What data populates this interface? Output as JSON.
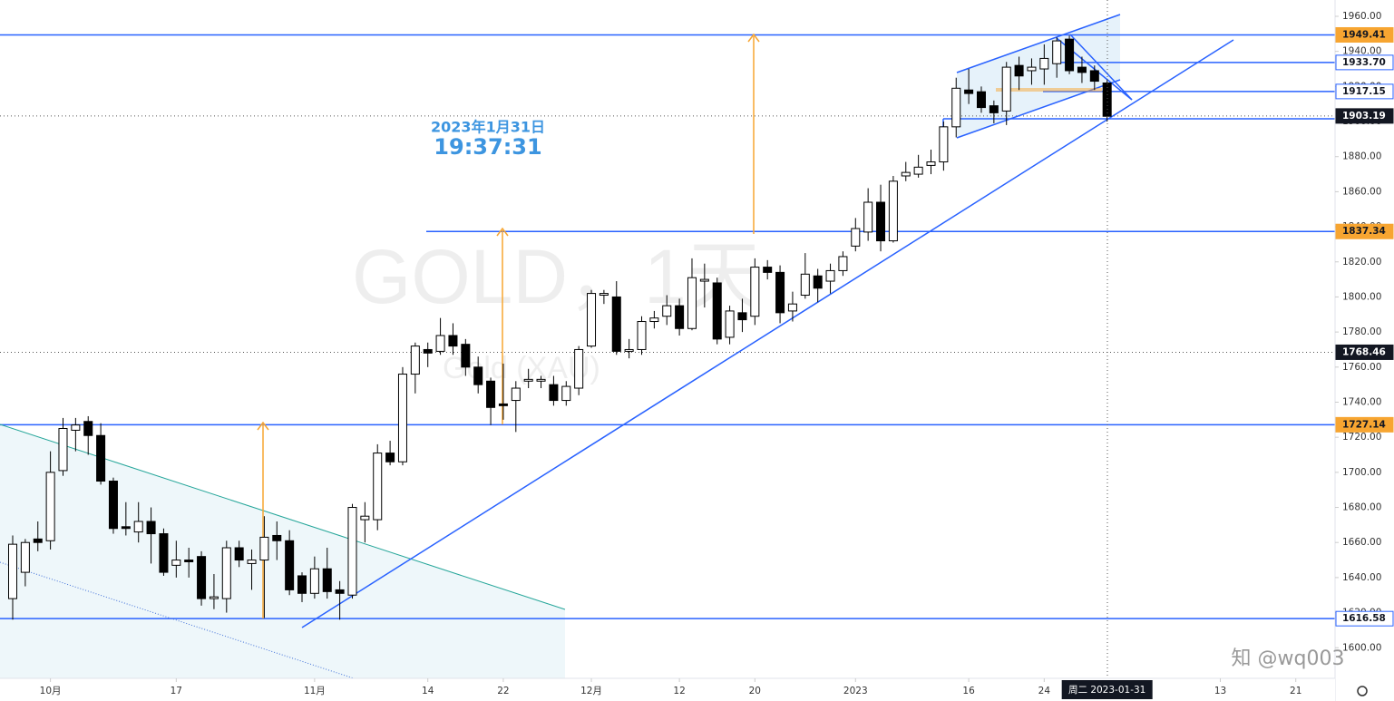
{
  "watermark": {
    "symbol": "GOLD，1天",
    "description": "Gold (XAU)",
    "user": "知 @wq003"
  },
  "timestamp": {
    "date": "2023年1月31日",
    "time": "19:37:31"
  },
  "chart_data": {
    "type": "candlestick",
    "ylim": [
      1582.55,
      1969.31
    ],
    "xlim": [
      -1.01,
      105.12
    ],
    "yticks": [
      {
        "value": 1600,
        "label": "1600.00"
      },
      {
        "value": 1620,
        "label": "1620.00"
      },
      {
        "value": 1640,
        "label": "1640.00"
      },
      {
        "value": 1660,
        "label": "1660.00"
      },
      {
        "value": 1680,
        "label": "1680.00"
      },
      {
        "value": 1700,
        "label": "1700.00"
      },
      {
        "value": 1720,
        "label": "1720.00"
      },
      {
        "value": 1740,
        "label": "1740.00"
      },
      {
        "value": 1760,
        "label": "1760.00"
      },
      {
        "value": 1780,
        "label": "1780.00"
      },
      {
        "value": 1800,
        "label": "1800.00"
      },
      {
        "value": 1820,
        "label": "1820.00"
      },
      {
        "value": 1840,
        "label": "1840.00"
      },
      {
        "value": 1860,
        "label": "1860.00"
      },
      {
        "value": 1880,
        "label": "1880.00"
      },
      {
        "value": 1900,
        "label": "1900.00"
      },
      {
        "value": 1920,
        "label": "1920.00"
      },
      {
        "value": 1940,
        "label": "1940.00"
      },
      {
        "value": 1960,
        "label": "1960.00"
      }
    ],
    "xticks": [
      {
        "value": 3,
        "label": "10月"
      },
      {
        "value": 13,
        "label": "17"
      },
      {
        "value": 24,
        "label": "11月"
      },
      {
        "value": 33,
        "label": "14"
      },
      {
        "value": 39,
        "label": "22"
      },
      {
        "value": 46,
        "label": "12月"
      },
      {
        "value": 53,
        "label": "12"
      },
      {
        "value": 59,
        "label": "20"
      },
      {
        "value": 67,
        "label": "2023"
      },
      {
        "value": 76,
        "label": "16"
      },
      {
        "value": 82,
        "label": "24"
      },
      {
        "value": 96,
        "label": "13"
      },
      {
        "value": 102,
        "label": "21"
      }
    ],
    "crosshair_x": {
      "value": 87,
      "label": "周二 2023-01-31"
    },
    "up_color": "#ffffff",
    "down_color": "#000000",
    "levels": [
      {
        "value": 1949.41,
        "style": "orange",
        "line": "solid"
      },
      {
        "value": 1933.7,
        "label": "1933.70",
        "style": "white",
        "line": "solid"
      },
      {
        "value": 1917.15,
        "style": "white",
        "line": "solid"
      },
      {
        "value": 1903.19,
        "style": "black",
        "line": "dotted"
      },
      {
        "value": 1837.34,
        "style": "orange",
        "line": "solid"
      },
      {
        "value": 1768.46,
        "style": "black",
        "line": "dotted"
      },
      {
        "value": 1727.14,
        "style": "orange",
        "line": "solid"
      },
      {
        "value": 1616.58,
        "style": "white",
        "line": "solid"
      }
    ],
    "ohlc": [
      [
        1628,
        1664,
        1616,
        1659
      ],
      [
        1643,
        1662,
        1635,
        1660
      ],
      [
        1662,
        1672,
        1655,
        1660
      ],
      [
        1661,
        1712,
        1656,
        1700
      ],
      [
        1701,
        1731,
        1698,
        1725
      ],
      [
        1724,
        1731,
        1712,
        1727
      ],
      [
        1729,
        1732,
        1710,
        1721
      ],
      [
        1721,
        1728,
        1693,
        1695
      ],
      [
        1695,
        1697,
        1665,
        1668
      ],
      [
        1669,
        1683,
        1664,
        1668
      ],
      [
        1666,
        1683,
        1660,
        1672
      ],
      [
        1672,
        1680,
        1648,
        1665
      ],
      [
        1665,
        1668,
        1641,
        1643
      ],
      [
        1647,
        1661,
        1640,
        1650
      ],
      [
        1650,
        1657,
        1640,
        1649
      ],
      [
        1652,
        1655,
        1624,
        1628
      ],
      [
        1628,
        1642,
        1622,
        1629
      ],
      [
        1628,
        1661,
        1620,
        1657
      ],
      [
        1657,
        1661,
        1646,
        1650
      ],
      [
        1648,
        1656,
        1633,
        1650
      ],
      [
        1650,
        1675,
        1617,
        1663
      ],
      [
        1664,
        1672,
        1650,
        1661
      ],
      [
        1661,
        1667,
        1630,
        1633
      ],
      [
        1641,
        1643,
        1626,
        1631
      ],
      [
        1631,
        1652,
        1628,
        1645
      ],
      [
        1645,
        1657,
        1628,
        1632
      ],
      [
        1633,
        1638,
        1616,
        1631
      ],
      [
        1630,
        1682,
        1628,
        1680
      ],
      [
        1673,
        1683,
        1660,
        1675
      ],
      [
        1673,
        1716,
        1667,
        1711
      ],
      [
        1711,
        1718,
        1704,
        1706
      ],
      [
        1706,
        1760,
        1704,
        1756
      ],
      [
        1756,
        1774,
        1745,
        1772
      ],
      [
        1770,
        1774,
        1760,
        1768
      ],
      [
        1769,
        1788,
        1767,
        1778
      ],
      [
        1778,
        1785,
        1767,
        1772
      ],
      [
        1773,
        1776,
        1755,
        1760
      ],
      [
        1760,
        1766,
        1745,
        1750
      ],
      [
        1752,
        1754,
        1727,
        1737
      ],
      [
        1739,
        1762,
        1730,
        1738
      ],
      [
        1741,
        1752,
        1723,
        1748
      ],
      [
        1752,
        1759,
        1748,
        1753
      ],
      [
        1752,
        1755,
        1748,
        1753
      ],
      [
        1750,
        1755,
        1738,
        1741
      ],
      [
        1741,
        1752,
        1738,
        1749
      ],
      [
        1748,
        1772,
        1744,
        1770
      ],
      [
        1772,
        1804,
        1771,
        1802
      ],
      [
        1801,
        1804,
        1796,
        1802
      ],
      [
        1800,
        1809,
        1767,
        1769
      ],
      [
        1769,
        1776,
        1765,
        1770
      ],
      [
        1770,
        1789,
        1767,
        1786
      ],
      [
        1786,
        1792,
        1782,
        1788
      ],
      [
        1789,
        1801,
        1784,
        1795
      ],
      [
        1795,
        1799,
        1778,
        1782
      ],
      [
        1782,
        1822,
        1781,
        1811
      ],
      [
        1809,
        1819,
        1794,
        1810
      ],
      [
        1808,
        1811,
        1773,
        1776
      ],
      [
        1777,
        1795,
        1773,
        1792
      ],
      [
        1791,
        1799,
        1780,
        1787
      ],
      [
        1789,
        1822,
        1784,
        1817
      ],
      [
        1817,
        1821,
        1810,
        1814
      ],
      [
        1814,
        1818,
        1785,
        1791
      ],
      [
        1792,
        1803,
        1786,
        1796
      ],
      [
        1801,
        1825,
        1799,
        1813
      ],
      [
        1812,
        1816,
        1797,
        1805
      ],
      [
        1809,
        1819,
        1802,
        1815
      ],
      [
        1815,
        1826,
        1812,
        1823
      ],
      [
        1829,
        1845,
        1826,
        1839
      ],
      [
        1837,
        1862,
        1832,
        1854
      ],
      [
        1854,
        1864,
        1826,
        1832
      ],
      [
        1832,
        1869,
        1831,
        1866
      ],
      [
        1869,
        1877,
        1866,
        1871
      ],
      [
        1870,
        1881,
        1868,
        1874
      ],
      [
        1875,
        1884,
        1870,
        1877
      ],
      [
        1877,
        1900,
        1872,
        1897
      ],
      [
        1897,
        1925,
        1891,
        1919
      ],
      [
        1918,
        1930,
        1910,
        1916
      ],
      [
        1917,
        1920,
        1905,
        1908
      ],
      [
        1909,
        1912,
        1899,
        1905
      ],
      [
        1906,
        1934,
        1898,
        1931
      ],
      [
        1932,
        1937,
        1918,
        1926
      ],
      [
        1929,
        1936,
        1921,
        1931
      ],
      [
        1930,
        1944,
        1921,
        1936
      ],
      [
        1933,
        1948,
        1925,
        1946
      ],
      [
        1947,
        1949,
        1927,
        1929
      ],
      [
        1931,
        1937,
        1922,
        1928
      ],
      [
        1929,
        1932,
        1918,
        1923
      ],
      [
        1922,
        1924,
        1900,
        1903
      ]
    ]
  }
}
